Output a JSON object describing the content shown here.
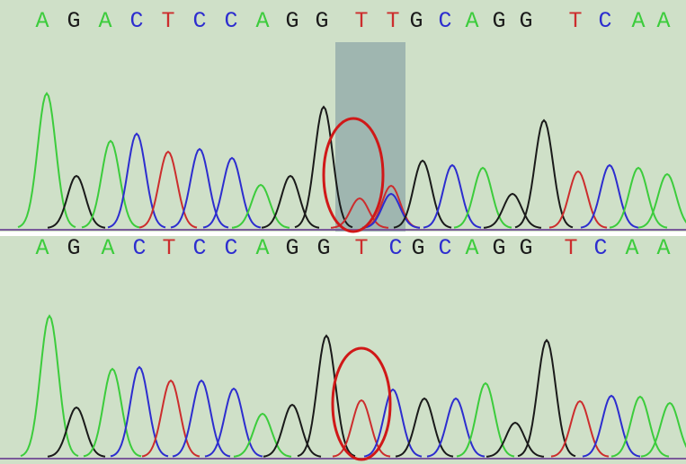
{
  "panels": [
    {
      "bases": [
        "A",
        "G",
        "A",
        "C",
        "T",
        "C",
        "C",
        "A",
        "G",
        "G",
        "T",
        "T",
        "G",
        "C",
        "A",
        "G",
        "G",
        "T",
        "C",
        "A",
        "A"
      ]
    },
    {
      "bases": [
        "A",
        "G",
        "A",
        "C",
        "T",
        "C",
        "C",
        "A",
        "G",
        "G",
        "T",
        "C",
        "G",
        "C",
        "A",
        "G",
        "G",
        "T",
        "C",
        "A",
        "A"
      ]
    }
  ],
  "base_colors": {
    "A": "#3ccc3c",
    "C": "#2d2dcf",
    "G": "#1a1a1a",
    "T": "#cc2d2d"
  }
}
